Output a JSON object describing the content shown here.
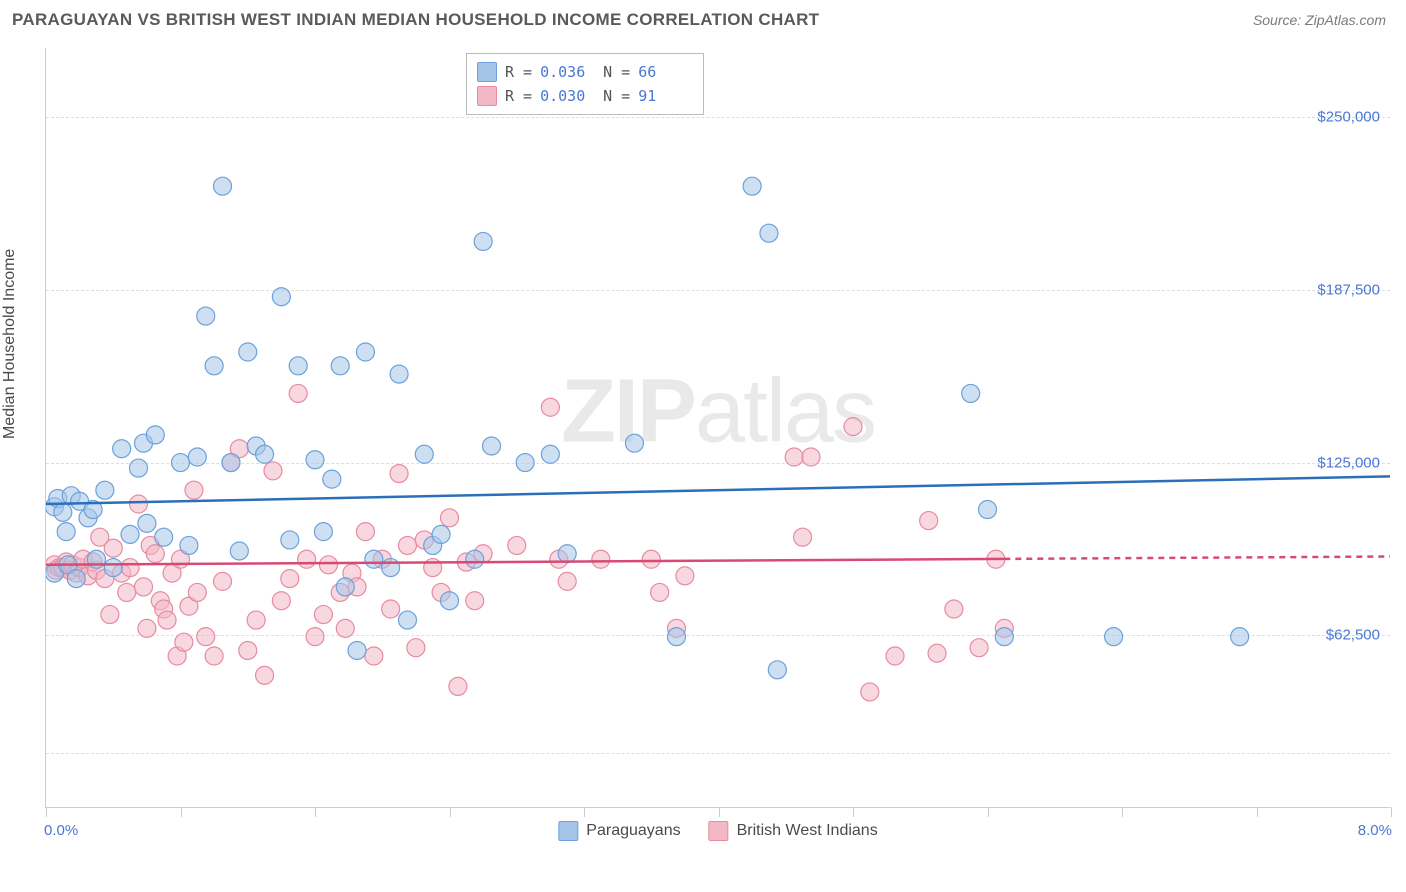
{
  "header": {
    "title": "PARAGUAYAN VS BRITISH WEST INDIAN MEDIAN HOUSEHOLD INCOME CORRELATION CHART",
    "source": "Source: ZipAtlas.com"
  },
  "watermark": {
    "prefix": "ZIP",
    "suffix": "atlas"
  },
  "chart": {
    "type": "scatter",
    "ylabel": "Median Household Income",
    "xlim": [
      0.0,
      8.0
    ],
    "ylim": [
      0,
      275000
    ],
    "y_ticks": [
      62500,
      125000,
      187500,
      250000
    ],
    "y_tick_labels": [
      "$62,500",
      "$125,000",
      "$187,500",
      "$250,000"
    ],
    "y_gridlines": [
      20000,
      62500,
      125000,
      187500,
      250000
    ],
    "x_ticks": [
      0.0,
      0.8,
      1.6,
      2.4,
      3.2,
      4.0,
      4.8,
      5.6,
      6.4,
      7.2,
      8.0
    ],
    "x_range_labels": {
      "min": "0.0%",
      "max": "8.0%"
    },
    "background_color": "#ffffff",
    "grid_color": "#dddddd",
    "axis_color": "#cccccc",
    "marker_radius": 9,
    "marker_opacity": 0.55,
    "line_width": 2.5,
    "series": [
      {
        "id": "paraguayans",
        "label": "Paraguayans",
        "fill_color": "#a5c5e8",
        "stroke_color": "#6aa2db",
        "line_color": "#2a6fb8",
        "R": "0.036",
        "N": "66",
        "trend": {
          "x1": 0.0,
          "y1": 110000,
          "x2": 8.0,
          "y2": 120000,
          "dash_from": null
        },
        "points": [
          [
            0.05,
            109000
          ],
          [
            0.05,
            85000
          ],
          [
            0.07,
            112000
          ],
          [
            0.1,
            107000
          ],
          [
            0.12,
            100000
          ],
          [
            0.13,
            88000
          ],
          [
            0.15,
            113000
          ],
          [
            0.18,
            83000
          ],
          [
            0.2,
            111000
          ],
          [
            0.25,
            105000
          ],
          [
            0.28,
            108000
          ],
          [
            0.3,
            90000
          ],
          [
            0.35,
            115000
          ],
          [
            0.4,
            87000
          ],
          [
            0.45,
            130000
          ],
          [
            0.5,
            99000
          ],
          [
            0.55,
            123000
          ],
          [
            0.58,
            132000
          ],
          [
            0.6,
            103000
          ],
          [
            0.65,
            135000
          ],
          [
            0.7,
            98000
          ],
          [
            0.8,
            125000
          ],
          [
            0.85,
            95000
          ],
          [
            0.9,
            127000
          ],
          [
            0.95,
            178000
          ],
          [
            1.0,
            160000
          ],
          [
            1.05,
            225000
          ],
          [
            1.1,
            125000
          ],
          [
            1.15,
            93000
          ],
          [
            1.2,
            165000
          ],
          [
            1.25,
            131000
          ],
          [
            1.3,
            128000
          ],
          [
            1.4,
            185000
          ],
          [
            1.45,
            97000
          ],
          [
            1.5,
            160000
          ],
          [
            1.6,
            126000
          ],
          [
            1.65,
            100000
          ],
          [
            1.7,
            119000
          ],
          [
            1.75,
            160000
          ],
          [
            1.78,
            80000
          ],
          [
            1.85,
            57000
          ],
          [
            1.9,
            165000
          ],
          [
            1.95,
            90000
          ],
          [
            2.05,
            87000
          ],
          [
            2.1,
            157000
          ],
          [
            2.15,
            68000
          ],
          [
            2.25,
            128000
          ],
          [
            2.3,
            95000
          ],
          [
            2.35,
            99000
          ],
          [
            2.4,
            75000
          ],
          [
            2.55,
            90000
          ],
          [
            2.6,
            205000
          ],
          [
            2.65,
            131000
          ],
          [
            2.85,
            125000
          ],
          [
            3.0,
            128000
          ],
          [
            3.1,
            92000
          ],
          [
            3.5,
            132000
          ],
          [
            3.75,
            62000
          ],
          [
            4.2,
            225000
          ],
          [
            4.3,
            208000
          ],
          [
            4.35,
            50000
          ],
          [
            5.5,
            150000
          ],
          [
            5.6,
            108000
          ],
          [
            5.7,
            62000
          ],
          [
            6.35,
            62000
          ],
          [
            7.1,
            62000
          ]
        ]
      },
      {
        "id": "british_west_indians",
        "label": "British West Indians",
        "fill_color": "#f2b8c6",
        "stroke_color": "#e88aa1",
        "line_color": "#d84a74",
        "R": "0.030",
        "N": "91",
        "trend": {
          "x1": 0.0,
          "y1": 88000,
          "x2": 8.0,
          "y2": 91000,
          "dash_from": 5.7
        },
        "points": [
          [
            0.05,
            88000
          ],
          [
            0.06,
            86000
          ],
          [
            0.08,
            87000
          ],
          [
            0.1,
            87000
          ],
          [
            0.12,
            89000
          ],
          [
            0.14,
            86000
          ],
          [
            0.16,
            88000
          ],
          [
            0.18,
            85000
          ],
          [
            0.2,
            87000
          ],
          [
            0.22,
            90000
          ],
          [
            0.25,
            84000
          ],
          [
            0.28,
            89000
          ],
          [
            0.3,
            86000
          ],
          [
            0.32,
            98000
          ],
          [
            0.35,
            83000
          ],
          [
            0.38,
            70000
          ],
          [
            0.4,
            94000
          ],
          [
            0.45,
            85000
          ],
          [
            0.48,
            78000
          ],
          [
            0.5,
            87000
          ],
          [
            0.55,
            110000
          ],
          [
            0.58,
            80000
          ],
          [
            0.6,
            65000
          ],
          [
            0.62,
            95000
          ],
          [
            0.65,
            92000
          ],
          [
            0.68,
            75000
          ],
          [
            0.7,
            72000
          ],
          [
            0.72,
            68000
          ],
          [
            0.75,
            85000
          ],
          [
            0.78,
            55000
          ],
          [
            0.8,
            90000
          ],
          [
            0.82,
            60000
          ],
          [
            0.85,
            73000
          ],
          [
            0.88,
            115000
          ],
          [
            0.9,
            78000
          ],
          [
            0.95,
            62000
          ],
          [
            1.0,
            55000
          ],
          [
            1.05,
            82000
          ],
          [
            1.1,
            125000
          ],
          [
            1.15,
            130000
          ],
          [
            1.2,
            57000
          ],
          [
            1.25,
            68000
          ],
          [
            1.3,
            48000
          ],
          [
            1.35,
            122000
          ],
          [
            1.4,
            75000
          ],
          [
            1.45,
            83000
          ],
          [
            1.5,
            150000
          ],
          [
            1.55,
            90000
          ],
          [
            1.6,
            62000
          ],
          [
            1.65,
            70000
          ],
          [
            1.68,
            88000
          ],
          [
            1.75,
            78000
          ],
          [
            1.78,
            65000
          ],
          [
            1.82,
            85000
          ],
          [
            1.85,
            80000
          ],
          [
            1.9,
            100000
          ],
          [
            1.95,
            55000
          ],
          [
            2.0,
            90000
          ],
          [
            2.05,
            72000
          ],
          [
            2.1,
            121000
          ],
          [
            2.15,
            95000
          ],
          [
            2.2,
            58000
          ],
          [
            2.25,
            97000
          ],
          [
            2.3,
            87000
          ],
          [
            2.35,
            78000
          ],
          [
            2.4,
            105000
          ],
          [
            2.45,
            44000
          ],
          [
            2.5,
            89000
          ],
          [
            2.55,
            75000
          ],
          [
            2.6,
            92000
          ],
          [
            2.8,
            95000
          ],
          [
            3.0,
            145000
          ],
          [
            3.05,
            90000
          ],
          [
            3.1,
            82000
          ],
          [
            3.3,
            90000
          ],
          [
            3.6,
            90000
          ],
          [
            3.65,
            78000
          ],
          [
            3.75,
            65000
          ],
          [
            3.8,
            84000
          ],
          [
            4.45,
            127000
          ],
          [
            4.5,
            98000
          ],
          [
            4.55,
            127000
          ],
          [
            4.8,
            138000
          ],
          [
            4.9,
            42000
          ],
          [
            5.05,
            55000
          ],
          [
            5.25,
            104000
          ],
          [
            5.3,
            56000
          ],
          [
            5.4,
            72000
          ],
          [
            5.55,
            58000
          ],
          [
            5.65,
            90000
          ],
          [
            5.7,
            65000
          ]
        ]
      }
    ]
  },
  "legend_top_stats": [
    {
      "swatch_fill": "#a5c5e8",
      "swatch_stroke": "#6aa2db",
      "R": "0.036",
      "N": "66"
    },
    {
      "swatch_fill": "#f2b8c6",
      "swatch_stroke": "#e88aa1",
      "R": "0.030",
      "N": "91"
    }
  ]
}
